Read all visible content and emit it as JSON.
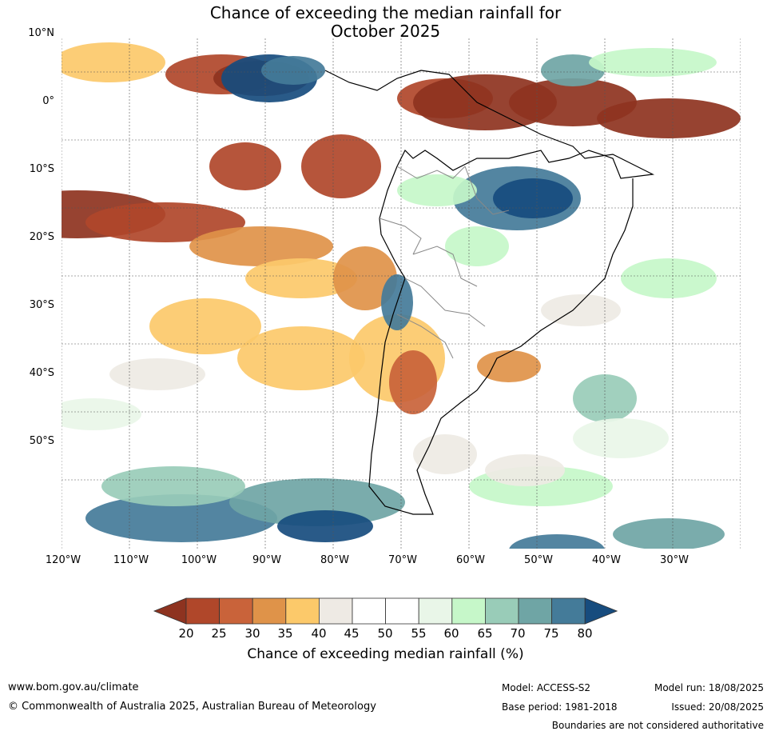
{
  "title_line1": "Chance of exceeding the median rainfall for",
  "title_line2": "October 2025",
  "lat_labels": [
    "10°N",
    "0°",
    "10°S",
    "20°S",
    "30°S",
    "40°S",
    "50°S"
  ],
  "lon_labels": [
    "120°W",
    "110°W",
    "100°W",
    "90°W",
    "80°W",
    "70°W",
    "60°W",
    "50°W",
    "40°W",
    "30°W"
  ],
  "colorbar": {
    "ticks": [
      "20",
      "25",
      "30",
      "35",
      "40",
      "45",
      "50",
      "55",
      "60",
      "65",
      "70",
      "75",
      "80"
    ],
    "colors": [
      "#8e3320",
      "#b0472a",
      "#c9633a",
      "#df9349",
      "#fcc96a",
      "#eeeae4",
      "#ffffff",
      "#ffffff",
      "#e9f6e8",
      "#c6f7c9",
      "#99ccb8",
      "#6fa5a5",
      "#447b99",
      "#174c7e"
    ],
    "label": "Chance of exceeding median rainfall (%)"
  },
  "footer": {
    "url": "www.bom.gov.au/climate",
    "copyright": "© Commonwealth of Australia 2025, Australian Bureau of Meteorology",
    "model": "Model: ACCESS-S2",
    "base_period": "Base period: 1981-2018",
    "model_run": "Model run: 18/08/2025",
    "issued": "Issued: 20/08/2025",
    "disclaimer": "Boundaries are not considered authoritative"
  }
}
